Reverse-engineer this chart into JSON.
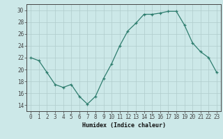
{
  "x": [
    0,
    1,
    2,
    3,
    4,
    5,
    6,
    7,
    8,
    9,
    10,
    11,
    12,
    13,
    14,
    15,
    16,
    17,
    18,
    19,
    20,
    21,
    22,
    23
  ],
  "y": [
    22,
    21.5,
    19.5,
    17.5,
    17,
    17.5,
    15.5,
    14.2,
    15.5,
    18.5,
    21,
    24,
    26.5,
    27.8,
    29.3,
    29.3,
    29.5,
    29.8,
    29.8,
    27.5,
    24.5,
    23,
    22,
    19.5
  ],
  "line_color": "#2e7d6e",
  "marker": "+",
  "marker_color": "#2e7d6e",
  "bg_color": "#cce8e8",
  "grid_color": "#b0cccc",
  "axis_color": "#444444",
  "xlabel": "Humidex (Indice chaleur)",
  "ylim": [
    13,
    31
  ],
  "xlim": [
    -0.5,
    23.5
  ],
  "yticks": [
    14,
    16,
    18,
    20,
    22,
    24,
    26,
    28,
    30
  ],
  "xticks": [
    0,
    1,
    2,
    3,
    4,
    5,
    6,
    7,
    8,
    9,
    10,
    11,
    12,
    13,
    14,
    15,
    16,
    17,
    18,
    19,
    20,
    21,
    22,
    23
  ],
  "xtick_labels": [
    "0",
    "1",
    "2",
    "3",
    "4",
    "5",
    "6",
    "7",
    "8",
    "9",
    "10",
    "11",
    "12",
    "13",
    "14",
    "15",
    "16",
    "17",
    "18",
    "19",
    "20",
    "21",
    "22",
    "23"
  ]
}
